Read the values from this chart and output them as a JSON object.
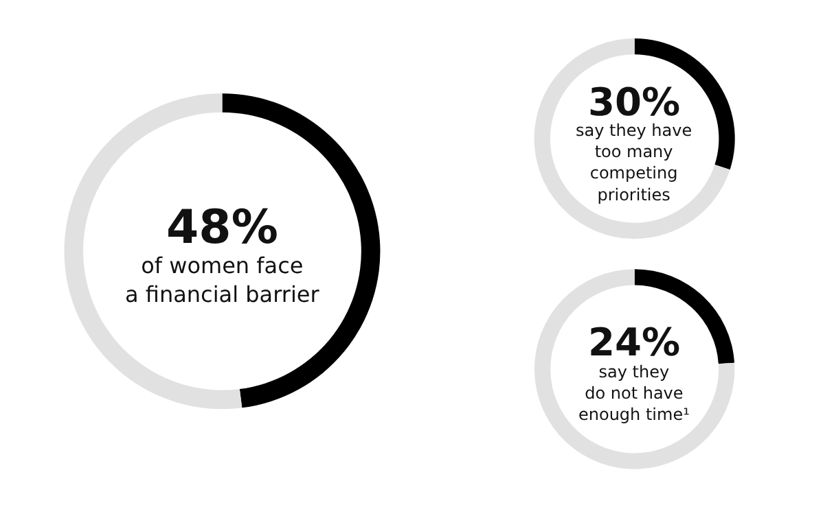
{
  "chart_data": [
    {
      "type": "donut",
      "categories": [
        null,
        null
      ],
      "values": [
        48,
        52
      ],
      "colors": [
        "#000000",
        "#e1e1e1"
      ],
      "annotations": [
        "48%",
        "of women face\na financial barrier"
      ]
    },
    {
      "type": "donut",
      "categories": [
        null,
        null
      ],
      "values": [
        30,
        70
      ],
      "colors": [
        "#000000",
        "#e1e1e1"
      ],
      "annotations": [
        "30%",
        "say they have\ntoo many\ncompeting\npriorities"
      ]
    },
    {
      "type": "donut",
      "categories": [
        null,
        null
      ],
      "values": [
        24,
        76
      ],
      "colors": [
        "#000000",
        "#e1e1e1"
      ],
      "annotations": [
        "24%",
        "say they\ndo not have\nenough time¹"
      ]
    }
  ]
}
